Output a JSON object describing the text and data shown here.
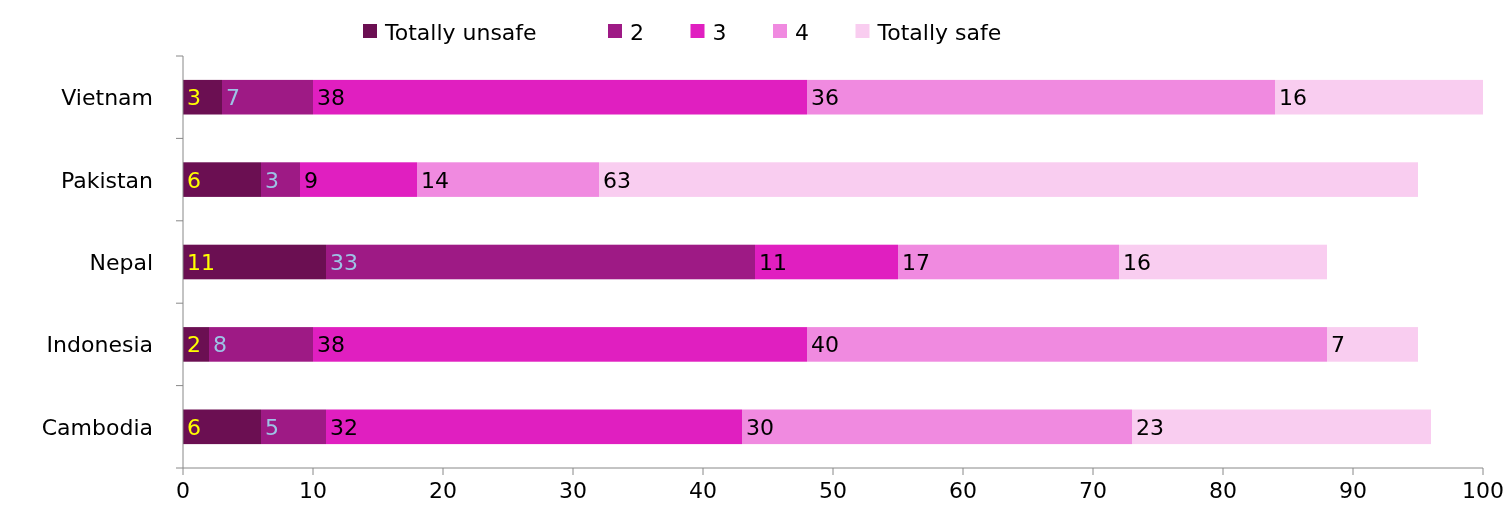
{
  "chart_data": {
    "type": "bar",
    "orientation": "horizontal",
    "stacked": true,
    "categories": [
      "Vietnam",
      "Pakistan",
      "Nepal",
      "Indonesia",
      "Cambodia"
    ],
    "series": [
      {
        "name": "Totally unsafe",
        "color": "#6b0f52",
        "values": [
          3,
          6,
          11,
          2,
          6
        ]
      },
      {
        "name": "2",
        "color": "#9e1a85",
        "values": [
          7,
          3,
          33,
          8,
          5
        ]
      },
      {
        "name": "3",
        "color": "#e01fc0",
        "values": [
          38,
          9,
          11,
          38,
          32
        ]
      },
      {
        "name": "4",
        "color": "#f08ae0",
        "values": [
          36,
          14,
          17,
          40,
          30
        ]
      },
      {
        "name": "Totally safe",
        "color": "#f9cdf0",
        "values": [
          16,
          63,
          16,
          7,
          23
        ]
      }
    ],
    "xlim": [
      0,
      100
    ],
    "xticks": [
      0,
      10,
      20,
      30,
      40,
      50,
      60,
      70,
      80,
      90,
      100
    ],
    "data_labels": true,
    "legend": "top",
    "grid": false
  }
}
